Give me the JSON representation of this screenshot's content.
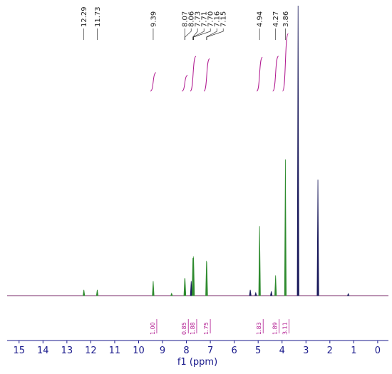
{
  "chart_data": {
    "type": "spectrum",
    "x_label": "f1 (ppm)",
    "xlim": [
      15.5,
      -0.45
    ],
    "xticks": [
      15,
      14,
      13,
      12,
      11,
      10,
      9,
      8,
      7,
      6,
      5,
      4,
      3,
      2,
      1,
      0
    ],
    "ylim": [
      0,
      100
    ],
    "peaks": {
      "x": [
        12.29,
        11.73,
        9.39,
        8.62,
        8.07,
        8.06,
        7.8,
        7.73,
        7.71,
        7.7,
        7.16,
        7.15,
        5.33,
        5.1,
        4.94,
        4.45,
        4.27,
        3.86,
        3.33,
        2.5,
        1.23
      ],
      "values": [
        2,
        2,
        5,
        0.8,
        6,
        6,
        5,
        13,
        13.5,
        13,
        12,
        11.5,
        2,
        1,
        24,
        1.5,
        7,
        47,
        100,
        40,
        0.7
      ],
      "colors": [
        "#2e8b2e",
        "#2e8b2e",
        "#2e8b2e",
        "#2e8b2e",
        "#2e8b2e",
        "#2e8b2e",
        "#1a1a5c",
        "#2e8b2e",
        "#2e8b2e",
        "#2e8b2e",
        "#2e8b2e",
        "#2e8b2e",
        "#1a1a5c",
        "#1a1a5c",
        "#2e8b2e",
        "#1a1a5c",
        "#2e8b2e",
        "#2e8b2e",
        "#1a1a5c",
        "#1a1a5c",
        "#1a1a5c"
      ]
    },
    "peak_labels": [
      12.29,
      11.73,
      9.39,
      8.07,
      8.06,
      7.73,
      7.71,
      {
        "value": 7.7,
        "label": "7.70"
      },
      7.16,
      7.15,
      4.94,
      4.27,
      3.86
    ],
    "integrals": {
      "x": [
        9.39,
        8.07,
        7.72,
        7.15,
        4.94,
        4.27,
        3.86
      ],
      "values": [
        1.0,
        0.85,
        1.88,
        1.75,
        1.83,
        1.89,
        3.11
      ],
      "value_labels": [
        "1.00",
        "0.85",
        "1.88",
        "1.75",
        "1.83",
        "1.89",
        "3.11"
      ],
      "color": "#b0178f"
    }
  }
}
